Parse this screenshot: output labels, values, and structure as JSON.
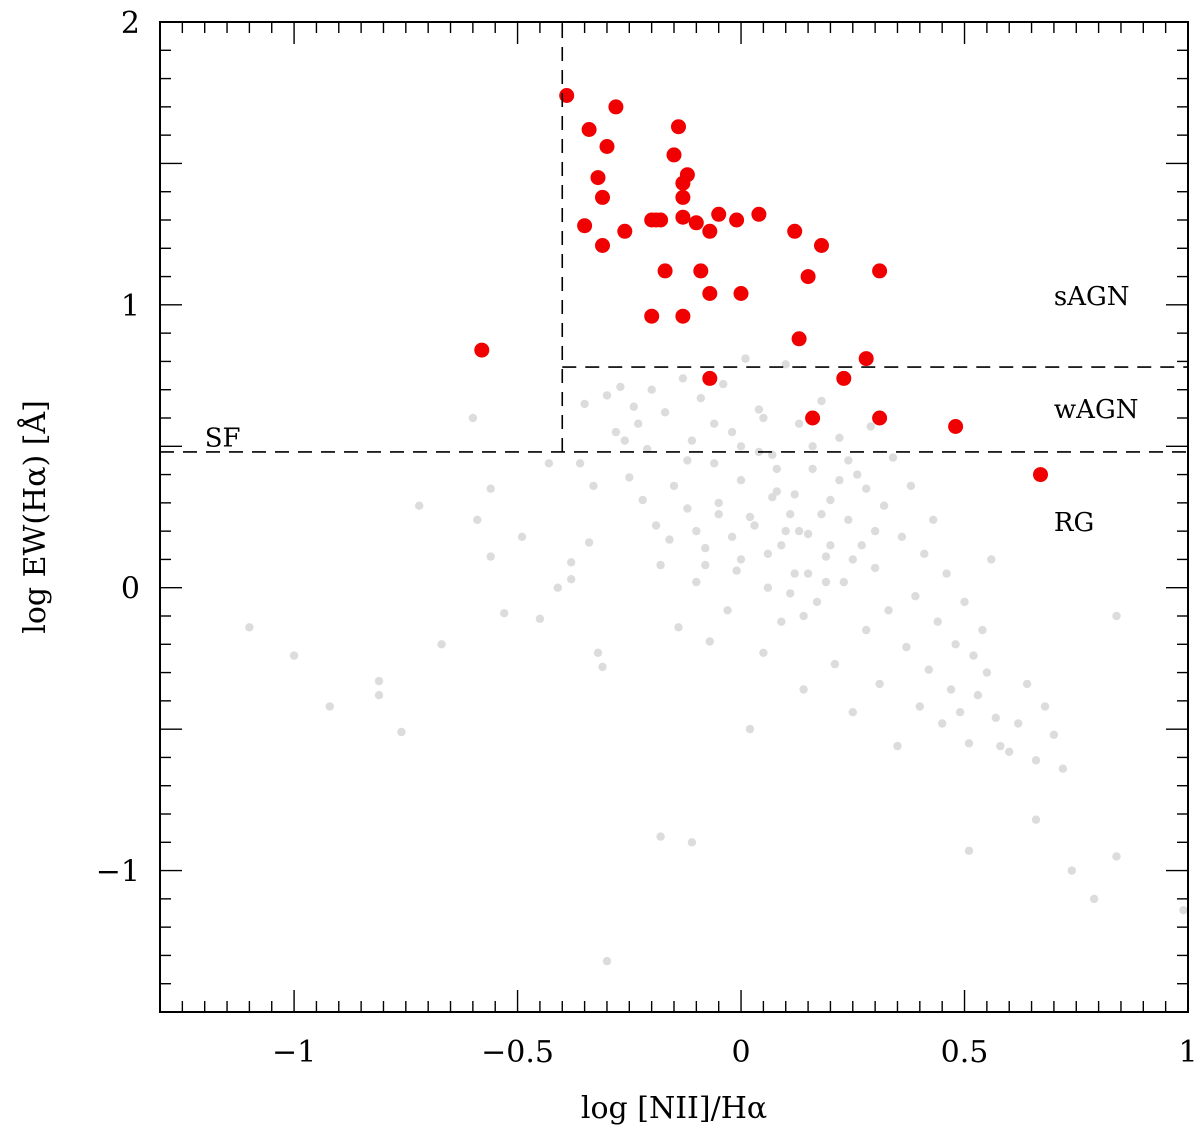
{
  "chart_data": {
    "type": "scatter",
    "xlabel": "log [NII]/Hα",
    "ylabel": "log EW(Hα) [Å]",
    "xlim": [
      -1.3,
      1.0
    ],
    "ylim": [
      -1.5,
      2.0
    ],
    "x_ticks": [
      {
        "value": -1,
        "label": "−1"
      },
      {
        "value": -0.5,
        "label": "−0.5"
      },
      {
        "value": 0,
        "label": "0"
      },
      {
        "value": 0.5,
        "label": "0.5"
      },
      {
        "value": 1,
        "label": "1"
      }
    ],
    "y_ticks": [
      {
        "value": -1,
        "label": "−1"
      },
      {
        "value": 0,
        "label": "0"
      },
      {
        "value": 1,
        "label": "1"
      },
      {
        "value": 2,
        "label": "2"
      }
    ],
    "grid": false,
    "dividers": [
      {
        "type": "vertical",
        "x": -0.4,
        "y_from": 0.48,
        "y_to": 2.0
      },
      {
        "type": "horizontal",
        "y": 0.48,
        "x_from": -1.3,
        "x_to": 1.0
      },
      {
        "type": "horizontal",
        "y": 0.78,
        "x_from": -0.4,
        "x_to": 1.0
      }
    ],
    "region_labels": [
      {
        "text": "SF",
        "x": -1.2,
        "y": 0.5
      },
      {
        "text": "sAGN",
        "x": 0.7,
        "y": 1.0
      },
      {
        "text": "wAGN",
        "x": 0.7,
        "y": 0.6
      },
      {
        "text": "RG",
        "x": 0.7,
        "y": 0.2
      }
    ],
    "series": [
      {
        "color": "#dcdcdc",
        "points": [
          [
            -1.1,
            -0.14
          ],
          [
            -1.0,
            -0.24
          ],
          [
            -0.92,
            -0.42
          ],
          [
            -0.81,
            -0.33
          ],
          [
            -0.81,
            -0.38
          ],
          [
            -0.76,
            -0.51
          ],
          [
            -0.72,
            0.29
          ],
          [
            -0.67,
            -0.2
          ],
          [
            -0.6,
            0.6
          ],
          [
            -0.59,
            0.24
          ],
          [
            -0.56,
            0.35
          ],
          [
            -0.56,
            0.11
          ],
          [
            -0.53,
            -0.09
          ],
          [
            -0.49,
            0.18
          ],
          [
            -0.45,
            -0.11
          ],
          [
            -0.43,
            0.44
          ],
          [
            -0.41,
            0.0
          ],
          [
            -0.38,
            0.09
          ],
          [
            -0.38,
            0.03
          ],
          [
            -0.36,
            0.44
          ],
          [
            -0.35,
            0.65
          ],
          [
            -0.34,
            0.16
          ],
          [
            -0.33,
            0.36
          ],
          [
            -0.32,
            -0.23
          ],
          [
            -0.31,
            -0.28
          ],
          [
            -0.3,
            0.68
          ],
          [
            -0.28,
            0.55
          ],
          [
            -0.27,
            0.71
          ],
          [
            -0.26,
            0.52
          ],
          [
            -0.25,
            0.39
          ],
          [
            -0.24,
            0.64
          ],
          [
            -0.23,
            0.58
          ],
          [
            -0.22,
            0.31
          ],
          [
            -0.21,
            0.49
          ],
          [
            -0.2,
            0.7
          ],
          [
            -0.19,
            0.22
          ],
          [
            -0.18,
            0.08
          ],
          [
            -0.17,
            0.62
          ],
          [
            -0.16,
            0.17
          ],
          [
            -0.15,
            0.36
          ],
          [
            -0.14,
            -0.14
          ],
          [
            -0.13,
            0.74
          ],
          [
            -0.12,
            0.28
          ],
          [
            -0.11,
            0.52
          ],
          [
            -0.1,
            0.02
          ],
          [
            -0.09,
            0.67
          ],
          [
            -0.08,
            0.14
          ],
          [
            -0.07,
            -0.19
          ],
          [
            -0.06,
            0.44
          ],
          [
            -0.05,
            0.26
          ],
          [
            -0.04,
            0.72
          ],
          [
            -0.03,
            -0.08
          ],
          [
            -0.02,
            0.55
          ],
          [
            -0.01,
            0.06
          ],
          [
            0.0,
            0.38
          ],
          [
            0.01,
            0.81
          ],
          [
            0.02,
            -0.5
          ],
          [
            0.03,
            0.22
          ],
          [
            0.04,
            0.63
          ],
          [
            0.05,
            -0.23
          ],
          [
            0.06,
            0.12
          ],
          [
            0.07,
            0.47
          ],
          [
            0.08,
            0.34
          ],
          [
            0.09,
            -0.12
          ],
          [
            0.1,
            0.79
          ],
          [
            0.11,
            0.26
          ],
          [
            0.12,
            0.05
          ],
          [
            0.13,
            0.58
          ],
          [
            0.14,
            -0.36
          ],
          [
            0.15,
            0.19
          ],
          [
            0.16,
            0.42
          ],
          [
            0.17,
            -0.05
          ],
          [
            0.18,
            0.66
          ],
          [
            0.19,
            0.11
          ],
          [
            0.2,
            0.31
          ],
          [
            0.21,
            -0.27
          ],
          [
            0.22,
            0.53
          ],
          [
            0.23,
            0.02
          ],
          [
            0.24,
            0.24
          ],
          [
            0.25,
            -0.44
          ],
          [
            0.26,
            0.4
          ],
          [
            0.27,
            0.15
          ],
          [
            0.28,
            -0.15
          ],
          [
            0.29,
            0.57
          ],
          [
            0.3,
            0.07
          ],
          [
            0.31,
            -0.34
          ],
          [
            0.32,
            0.29
          ],
          [
            0.33,
            -0.08
          ],
          [
            0.34,
            0.46
          ],
          [
            0.35,
            -0.56
          ],
          [
            0.36,
            0.18
          ],
          [
            0.37,
            -0.21
          ],
          [
            0.38,
            0.36
          ],
          [
            0.39,
            -0.03
          ],
          [
            0.4,
            -0.42
          ],
          [
            0.41,
            0.12
          ],
          [
            0.42,
            -0.29
          ],
          [
            0.43,
            0.24
          ],
          [
            0.44,
            -0.12
          ],
          [
            0.45,
            -0.48
          ],
          [
            0.46,
            0.05
          ],
          [
            0.47,
            -0.36
          ],
          [
            0.48,
            -0.2
          ],
          [
            0.49,
            -0.44
          ],
          [
            0.5,
            -0.05
          ],
          [
            0.51,
            -0.55
          ],
          [
            0.52,
            -0.24
          ],
          [
            0.53,
            -0.38
          ],
          [
            0.54,
            -0.15
          ],
          [
            0.55,
            -0.3
          ],
          [
            0.56,
            0.1
          ],
          [
            0.57,
            -0.46
          ],
          [
            0.58,
            -0.56
          ],
          [
            0.6,
            -0.58
          ],
          [
            0.62,
            -0.48
          ],
          [
            0.64,
            -0.34
          ],
          [
            0.66,
            -0.61
          ],
          [
            0.66,
            -0.82
          ],
          [
            0.68,
            -0.42
          ],
          [
            0.7,
            -0.52
          ],
          [
            0.72,
            -0.64
          ],
          [
            0.74,
            -1.0
          ],
          [
            0.79,
            -1.1
          ],
          [
            0.84,
            -0.1
          ],
          [
            0.84,
            -0.95
          ],
          [
            0.99,
            -1.14
          ],
          [
            0.51,
            -0.93
          ],
          [
            -0.18,
            -0.88
          ],
          [
            -0.11,
            -0.9
          ],
          [
            -0.3,
            -1.32
          ],
          [
            0.06,
            0.0
          ],
          [
            0.1,
            0.2
          ],
          [
            0.0,
            0.1
          ],
          [
            -0.05,
            0.3
          ],
          [
            0.15,
            0.05
          ],
          [
            0.2,
            0.15
          ],
          [
            0.08,
            0.42
          ],
          [
            -0.02,
            0.18
          ],
          [
            0.12,
            0.33
          ],
          [
            0.18,
            0.26
          ],
          [
            0.04,
            0.48
          ],
          [
            -0.08,
            0.08
          ],
          [
            0.25,
            0.1
          ],
          [
            0.3,
            0.2
          ],
          [
            0.14,
            -0.1
          ],
          [
            0.05,
            0.6
          ],
          [
            -0.12,
            0.45
          ],
          [
            0.22,
            0.38
          ],
          [
            0.09,
            0.15
          ],
          [
            0.16,
            0.5
          ],
          [
            -0.06,
            0.58
          ],
          [
            0.02,
            0.25
          ],
          [
            0.28,
            0.35
          ],
          [
            0.11,
            -0.02
          ],
          [
            0.19,
            0.02
          ],
          [
            0.0,
            0.5
          ],
          [
            0.07,
            0.32
          ],
          [
            -0.1,
            0.2
          ],
          [
            0.24,
            0.45
          ],
          [
            0.13,
            0.2
          ]
        ]
      },
      {
        "color": "#f00000",
        "points": [
          [
            -0.39,
            1.74
          ],
          [
            -0.28,
            1.7
          ],
          [
            -0.34,
            1.62
          ],
          [
            -0.3,
            1.56
          ],
          [
            -0.32,
            1.45
          ],
          [
            -0.31,
            1.38
          ],
          [
            -0.35,
            1.28
          ],
          [
            -0.31,
            1.21
          ],
          [
            -0.26,
            1.26
          ],
          [
            -0.14,
            1.63
          ],
          [
            -0.15,
            1.53
          ],
          [
            -0.12,
            1.46
          ],
          [
            -0.13,
            1.43
          ],
          [
            -0.13,
            1.38
          ],
          [
            -0.13,
            1.31
          ],
          [
            -0.2,
            1.3
          ],
          [
            -0.19,
            1.3
          ],
          [
            -0.18,
            1.3
          ],
          [
            -0.1,
            1.29
          ],
          [
            -0.07,
            1.26
          ],
          [
            -0.05,
            1.32
          ],
          [
            -0.01,
            1.3
          ],
          [
            0.04,
            1.32
          ],
          [
            0.12,
            1.26
          ],
          [
            0.18,
            1.21
          ],
          [
            -0.17,
            1.12
          ],
          [
            -0.09,
            1.12
          ],
          [
            0.15,
            1.1
          ],
          [
            0.31,
            1.12
          ],
          [
            -0.07,
            1.04
          ],
          [
            0.0,
            1.04
          ],
          [
            -0.2,
            0.96
          ],
          [
            -0.13,
            0.96
          ],
          [
            0.13,
            0.88
          ],
          [
            -0.58,
            0.84
          ],
          [
            0.28,
            0.81
          ],
          [
            -0.07,
            0.74
          ],
          [
            0.23,
            0.74
          ],
          [
            0.16,
            0.6
          ],
          [
            0.31,
            0.6
          ],
          [
            0.48,
            0.57
          ],
          [
            0.67,
            0.4
          ]
        ]
      }
    ]
  }
}
